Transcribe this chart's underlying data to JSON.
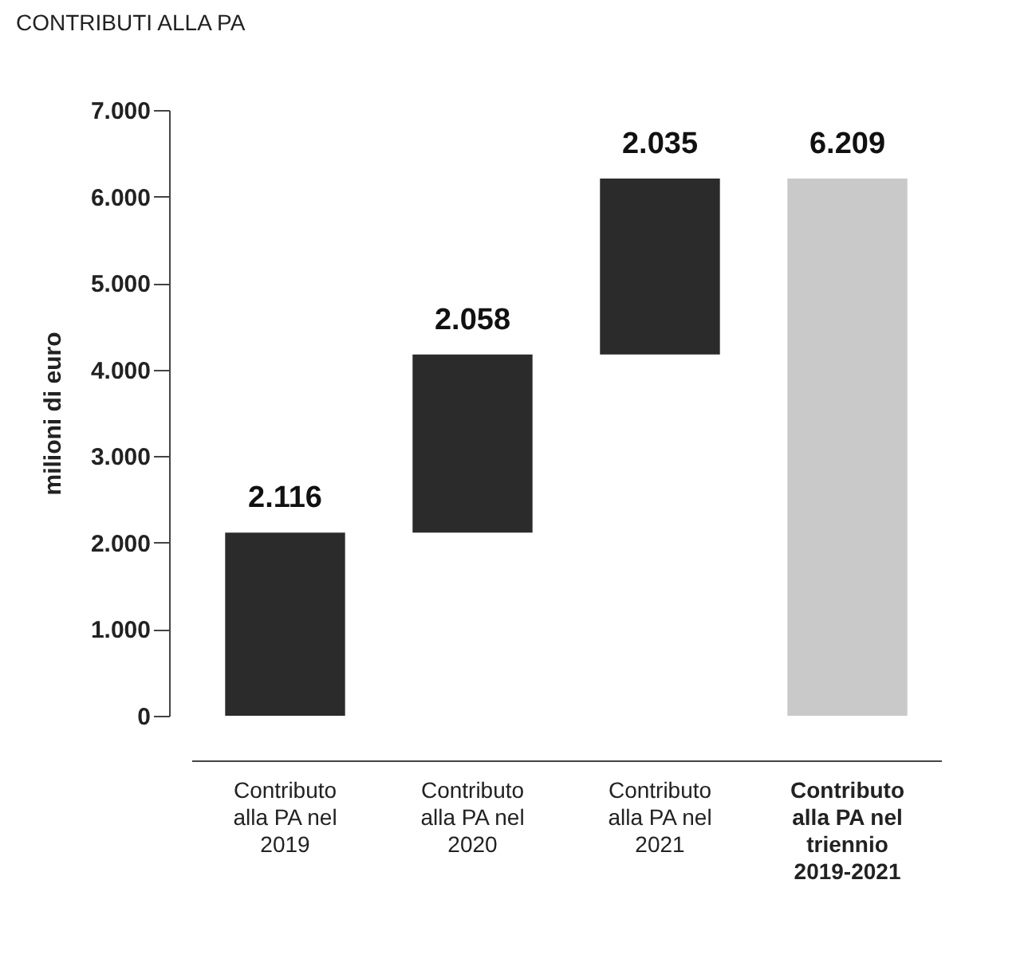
{
  "chart_data": {
    "type": "bar",
    "title": "CONTRIBUTI ALLA PA",
    "ylabel": "milioni di euro",
    "categories": [
      "Contributo alla PA nel 2019",
      "Contributo alla PA nel 2020",
      "Contributo alla PA nel 2021",
      "Contributo alla PA nel triennio 2019-2021"
    ],
    "values": [
      2116,
      2058,
      2035,
      6209
    ],
    "value_labels": [
      "2.116",
      "2.058",
      "2.035",
      "6.209"
    ],
    "base": [
      0,
      2116,
      4174,
      0
    ],
    "colors": [
      "#2b2b2b",
      "#2b2b2b",
      "#2b2b2b",
      "#c9c9c9"
    ],
    "ylim": [
      0,
      7000
    ],
    "yticks": [
      0,
      {
        "value": 1000,
        "label": "1.000"
      },
      {
        "value": 2000,
        "label": "2.000"
      },
      {
        "value": 3000,
        "label": "3.000"
      },
      {
        "value": 4000,
        "label": "4.000"
      },
      {
        "value": 5000,
        "label": "5.000"
      },
      {
        "value": 6000,
        "label": "6.000"
      },
      {
        "value": 7000,
        "label": "7.000"
      }
    ],
    "grid": false
  }
}
